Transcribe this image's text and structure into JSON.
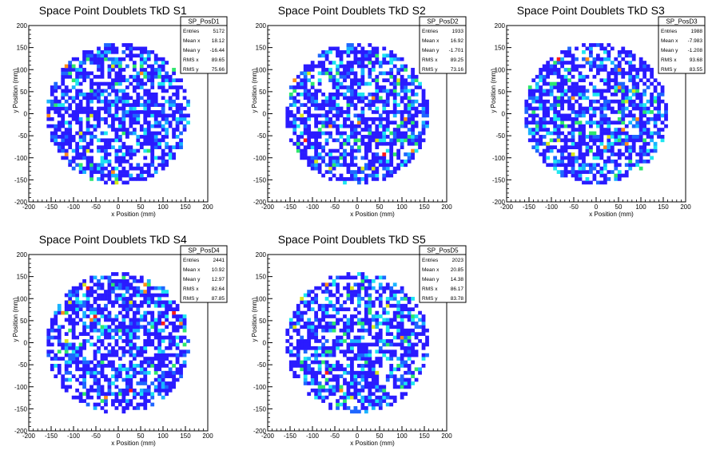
{
  "chart_data": [
    {
      "type": "heatmap",
      "title": "Space Point Doublets TkD S1",
      "xlabel": "x Position (mm)",
      "ylabel": "y Position (mm)",
      "xlim": [
        -200,
        200
      ],
      "ylim": [
        -200,
        200
      ],
      "xticks": [
        -200,
        -150,
        -100,
        -50,
        0,
        50,
        100,
        150,
        200
      ],
      "yticks": [
        -200,
        -150,
        -100,
        -50,
        0,
        50,
        100,
        150,
        200
      ],
      "data_radius": 160,
      "stats": {
        "name": "SP_PosD1",
        "rows": [
          {
            "label": "Entries",
            "value": "5172"
          },
          {
            "label": "Mean x",
            "value": "18.12"
          },
          {
            "label": "Mean y",
            "value": "-16.44"
          },
          {
            "label": "RMS x",
            "value": "89.65"
          },
          {
            "label": "RMS y",
            "value": "75.66"
          }
        ]
      }
    },
    {
      "type": "heatmap",
      "title": "Space Point Doublets TkD S2",
      "xlabel": "x Position (mm)",
      "ylabel": "y Position (mm)",
      "xlim": [
        -200,
        200
      ],
      "ylim": [
        -200,
        200
      ],
      "xticks": [
        -200,
        -150,
        -100,
        -50,
        0,
        50,
        100,
        150,
        200
      ],
      "yticks": [
        -200,
        -150,
        -100,
        -50,
        0,
        50,
        100,
        150,
        200
      ],
      "data_radius": 160,
      "stats": {
        "name": "SP_PosD2",
        "rows": [
          {
            "label": "Entries",
            "value": "1933"
          },
          {
            "label": "Mean x",
            "value": "16.92"
          },
          {
            "label": "Mean y",
            "value": "-1.701"
          },
          {
            "label": "RMS x",
            "value": "89.25"
          },
          {
            "label": "RMS y",
            "value": "73.16"
          }
        ]
      }
    },
    {
      "type": "heatmap",
      "title": "Space Point Doublets TkD S3",
      "xlabel": "x Position (mm)",
      "ylabel": "y Position (mm)",
      "xlim": [
        -200,
        200
      ],
      "ylim": [
        -200,
        200
      ],
      "xticks": [
        -200,
        -150,
        -100,
        -50,
        0,
        50,
        100,
        150,
        200
      ],
      "yticks": [
        -200,
        -150,
        -100,
        -50,
        0,
        50,
        100,
        150,
        200
      ],
      "data_radius": 160,
      "stats": {
        "name": "SP_PosD3",
        "rows": [
          {
            "label": "Entries",
            "value": "1988"
          },
          {
            "label": "Mean x",
            "value": "-7.983"
          },
          {
            "label": "Mean y",
            "value": "-1.208"
          },
          {
            "label": "RMS x",
            "value": "93.68"
          },
          {
            "label": "RMS y",
            "value": "83.55"
          }
        ]
      }
    },
    {
      "type": "heatmap",
      "title": "Space Point Doublets TkD S4",
      "xlabel": "x Position (mm)",
      "ylabel": "y Position (mm)",
      "xlim": [
        -200,
        200
      ],
      "ylim": [
        -200,
        200
      ],
      "xticks": [
        -200,
        -150,
        -100,
        -50,
        0,
        50,
        100,
        150,
        200
      ],
      "yticks": [
        -200,
        -150,
        -100,
        -50,
        0,
        50,
        100,
        150,
        200
      ],
      "data_radius": 160,
      "stats": {
        "name": "SP_PosD4",
        "rows": [
          {
            "label": "Entries",
            "value": "2441"
          },
          {
            "label": "Mean x",
            "value": "10.92"
          },
          {
            "label": "Mean y",
            "value": "12.97"
          },
          {
            "label": "RMS x",
            "value": "82.64"
          },
          {
            "label": "RMS y",
            "value": "87.85"
          }
        ]
      }
    },
    {
      "type": "heatmap",
      "title": "Space Point Doublets TkD S5",
      "xlabel": "x Position (mm)",
      "ylabel": "y Position (mm)",
      "xlim": [
        -200,
        200
      ],
      "ylim": [
        -200,
        200
      ],
      "xticks": [
        -200,
        -150,
        -100,
        -50,
        0,
        50,
        100,
        150,
        200
      ],
      "yticks": [
        -200,
        -150,
        -100,
        -50,
        0,
        50,
        100,
        150,
        200
      ],
      "data_radius": 160,
      "stats": {
        "name": "SP_PosD5",
        "rows": [
          {
            "label": "Entries",
            "value": "2023"
          },
          {
            "label": "Mean x",
            "value": "20.85"
          },
          {
            "label": "Mean y",
            "value": "14.38"
          },
          {
            "label": "RMS x",
            "value": "86.17"
          },
          {
            "label": "RMS y",
            "value": "83.78"
          }
        ]
      }
    }
  ],
  "palette": [
    "#2a1bff",
    "#1e66ff",
    "#19b3ff",
    "#1ee6f0",
    "#2ee66e",
    "#d8e61a",
    "#ff8c1a",
    "#ff1a1a"
  ]
}
